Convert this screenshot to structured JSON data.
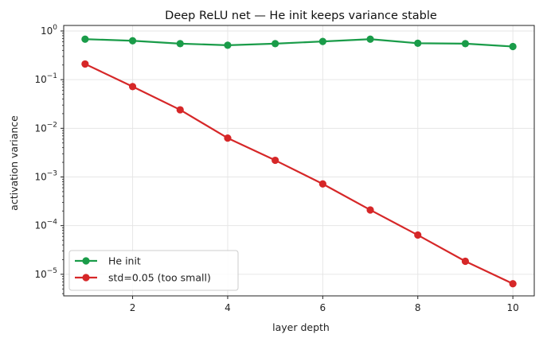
{
  "chart_data": {
    "type": "line",
    "title": "Deep ReLU net — He init keeps variance stable",
    "xlabel": "layer depth",
    "ylabel": "activation variance",
    "yscale": "log",
    "xlim": [
      0.55,
      10.45
    ],
    "ylim": [
      3.6e-06,
      1.3
    ],
    "grid": true,
    "legend_position": "lower-left",
    "x": [
      1,
      2,
      3,
      4,
      5,
      6,
      7,
      8,
      9,
      10
    ],
    "x_ticks": [
      2,
      4,
      6,
      8,
      10
    ],
    "y_ticks": [
      {
        "value": 1e-05,
        "base": "10",
        "exp": "−5"
      },
      {
        "value": 0.0001,
        "base": "10",
        "exp": "−4"
      },
      {
        "value": 0.001,
        "base": "10",
        "exp": "−3"
      },
      {
        "value": 0.01,
        "base": "10",
        "exp": "−2"
      },
      {
        "value": 0.1,
        "base": "10",
        "exp": "−1"
      },
      {
        "value": 1,
        "base": "10",
        "exp": "0"
      }
    ],
    "series": [
      {
        "name": "He init",
        "color": "#1a9c49",
        "values": [
          0.68,
          0.63,
          0.55,
          0.51,
          0.55,
          0.61,
          0.68,
          0.56,
          0.55,
          0.48
        ]
      },
      {
        "name": "std=0.05 (too small)",
        "color": "#d62728",
        "values": [
          0.21,
          0.072,
          0.024,
          0.0063,
          0.0022,
          0.00072,
          0.00021,
          6.4e-05,
          1.85e-05,
          6.4e-06
        ]
      }
    ]
  }
}
